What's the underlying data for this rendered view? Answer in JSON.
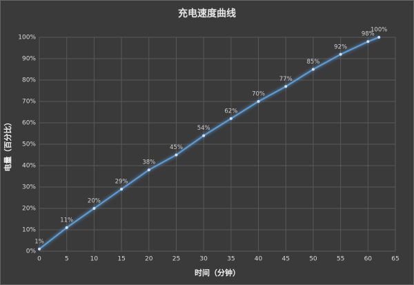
{
  "chart_data": {
    "type": "line",
    "title": "充电速度曲线",
    "x_label": "时间（分钟）",
    "y_label": "电量（百分比）",
    "x": [
      0,
      5,
      10,
      15,
      20,
      25,
      30,
      35,
      40,
      45,
      50,
      55,
      60,
      62
    ],
    "series": [
      {
        "name": "电量",
        "color": "#5b9bd5",
        "values": [
          1,
          11,
          20,
          29,
          38,
          45,
          54,
          62,
          70,
          77,
          85,
          92,
          98,
          100
        ],
        "value_labels": [
          "1%",
          "11%",
          "20%",
          "29%",
          "38%",
          "45%",
          "54%",
          "62%",
          "70%",
          "77%",
          "85%",
          "92%",
          "98%",
          "100%"
        ]
      }
    ],
    "xlim": [
      0,
      65
    ],
    "xticks": [
      0,
      5,
      10,
      15,
      20,
      25,
      30,
      35,
      40,
      45,
      50,
      55,
      60,
      65
    ],
    "ylim": [
      0,
      100
    ],
    "yticks": [
      {
        "value": 0,
        "label": "0%"
      },
      {
        "value": 10,
        "label": "10%"
      },
      {
        "value": 20,
        "label": "20%"
      },
      {
        "value": 30,
        "label": "30%"
      },
      {
        "value": 40,
        "label": "40%"
      },
      {
        "value": 50,
        "label": "50%"
      },
      {
        "value": 60,
        "label": "60%"
      },
      {
        "value": 70,
        "label": "70%"
      },
      {
        "value": 80,
        "label": "80%"
      },
      {
        "value": 90,
        "label": "90%"
      },
      {
        "value": 100,
        "label": "100%"
      }
    ],
    "grid": true
  }
}
